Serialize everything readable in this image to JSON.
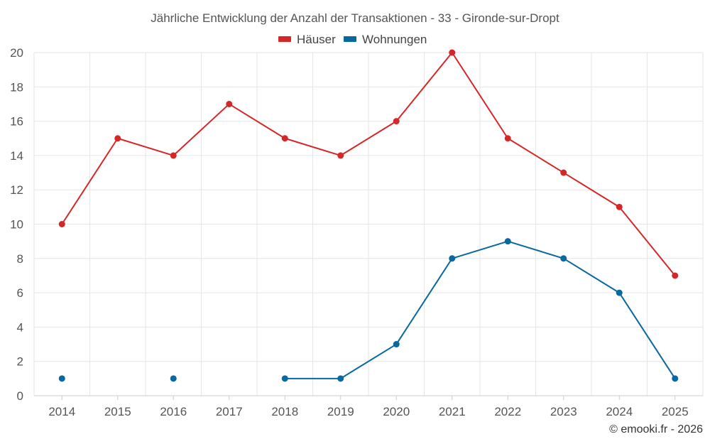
{
  "chart_data": {
    "type": "line",
    "title": "Jährliche Entwicklung der Anzahl der Transaktionen - 33 - Gironde-sur-Dropt",
    "categories": [
      "2014",
      "2015",
      "2016",
      "2017",
      "2018",
      "2019",
      "2020",
      "2021",
      "2022",
      "2023",
      "2024",
      "2025"
    ],
    "ylim": [
      0,
      20
    ],
    "yticks": [
      0,
      2,
      4,
      6,
      8,
      10,
      12,
      14,
      16,
      18,
      20
    ],
    "grid": true,
    "legend_position": "top-center",
    "series": [
      {
        "name": "Häuser",
        "color": "#d62728",
        "values": [
          10,
          15,
          14,
          17,
          15,
          14,
          16,
          20,
          15,
          13,
          11,
          7
        ]
      },
      {
        "name": "Wohnungen",
        "color": "#0868a0",
        "values": [
          1,
          null,
          1,
          null,
          1,
          1,
          3,
          8,
          9,
          8,
          6,
          1
        ]
      }
    ]
  },
  "credit": "© emooki.fr - 2026"
}
